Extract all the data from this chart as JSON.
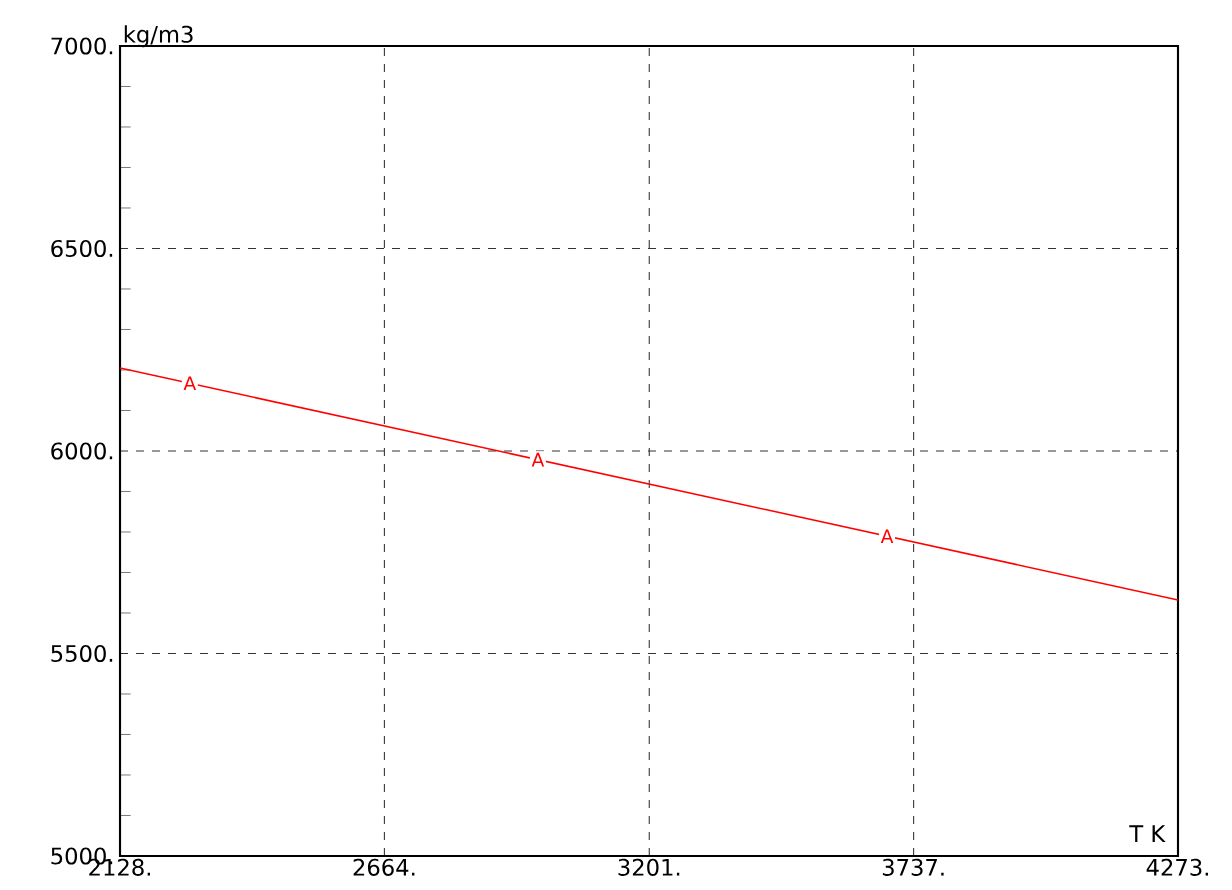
{
  "chart_data": {
    "type": "line",
    "xlabel": "T  K",
    "ylabel": "kg/m3",
    "x": [
      2128,
      4273
    ],
    "series": [
      {
        "name": "A",
        "color": "#ff0000",
        "values": [
          6205,
          5632
        ]
      }
    ],
    "xlim": [
      2128,
      4273
    ],
    "xticks": [
      {
        "value": 2128,
        "label": "2128."
      },
      {
        "value": 2664,
        "label": "2664."
      },
      {
        "value": 3201,
        "label": "3201."
      },
      {
        "value": 3737,
        "label": "3737."
      },
      {
        "value": 4273,
        "label": "4273."
      }
    ],
    "ylim": [
      5000,
      7000
    ],
    "yticks": [
      {
        "value": 5000,
        "label": "5000."
      },
      {
        "value": 5500,
        "label": "5500."
      },
      {
        "value": 6000,
        "label": "6000."
      },
      {
        "value": 6500,
        "label": "6500."
      },
      {
        "value": 7000,
        "label": "7000."
      }
    ],
    "grid": true,
    "line_style": "solid",
    "marker": "none"
  }
}
